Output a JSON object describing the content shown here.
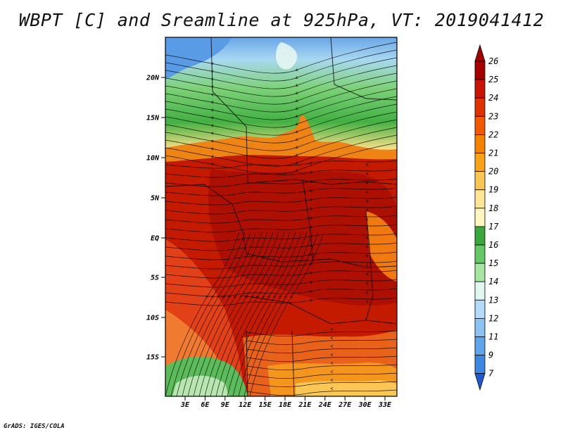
{
  "title": "WBPT [C] and Sreamline at 925hPa, VT: 2019041412",
  "footer": "GrADS: IGES/COLA",
  "map": {
    "lat_labels": [
      "20N",
      "15N",
      "10N",
      "5N",
      "EQ",
      "5S",
      "10S",
      "15S"
    ],
    "lon_labels": [
      "3E",
      "6E",
      "9E",
      "12E",
      "15E",
      "18E",
      "21E",
      "24E",
      "27E",
      "30E",
      "33E"
    ]
  },
  "colorbar": {
    "labels": [
      "26",
      "25",
      "24",
      "23",
      "22",
      "21",
      "20",
      "19",
      "18",
      "17",
      "16",
      "15",
      "14",
      "13",
      "12",
      "11",
      "9",
      "7"
    ],
    "colors": [
      "#a50000",
      "#c81400",
      "#e03200",
      "#f05a00",
      "#f58200",
      "#f8a218",
      "#fbc654",
      "#fde696",
      "#fff5be",
      "#3aa83a",
      "#64c864",
      "#a6e6a0",
      "#e0f8f0",
      "#b4dcfa",
      "#8cc3f5",
      "#5fa5eb",
      "#3c87e1",
      "#1e5ad2"
    ]
  }
}
